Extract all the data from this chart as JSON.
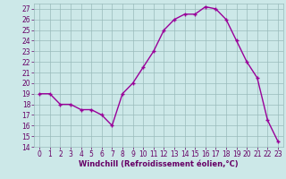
{
  "x": [
    0,
    1,
    2,
    3,
    4,
    5,
    6,
    7,
    8,
    9,
    10,
    11,
    12,
    13,
    14,
    15,
    16,
    17,
    18,
    19,
    20,
    21,
    22,
    23
  ],
  "y": [
    19,
    19,
    18,
    18,
    17.5,
    17.5,
    17,
    16,
    19,
    20,
    21.5,
    23,
    25,
    26,
    26.5,
    26.5,
    27.2,
    27,
    26,
    24,
    22,
    20.5,
    16.5,
    14.5
  ],
  "line_color": "#990099",
  "marker": "+",
  "bg_color": "#cce8e8",
  "grid_color": "#99bbbb",
  "xlabel": "Windchill (Refroidissement éolien,°C)",
  "ylim": [
    14,
    27.5
  ],
  "yticks": [
    14,
    15,
    16,
    17,
    18,
    19,
    20,
    21,
    22,
    23,
    24,
    25,
    26,
    27
  ],
  "xticks": [
    0,
    1,
    2,
    3,
    4,
    5,
    6,
    7,
    8,
    9,
    10,
    11,
    12,
    13,
    14,
    15,
    16,
    17,
    18,
    19,
    20,
    21,
    22,
    23
  ],
  "tick_color": "#660066",
  "axis_label_color": "#660066"
}
